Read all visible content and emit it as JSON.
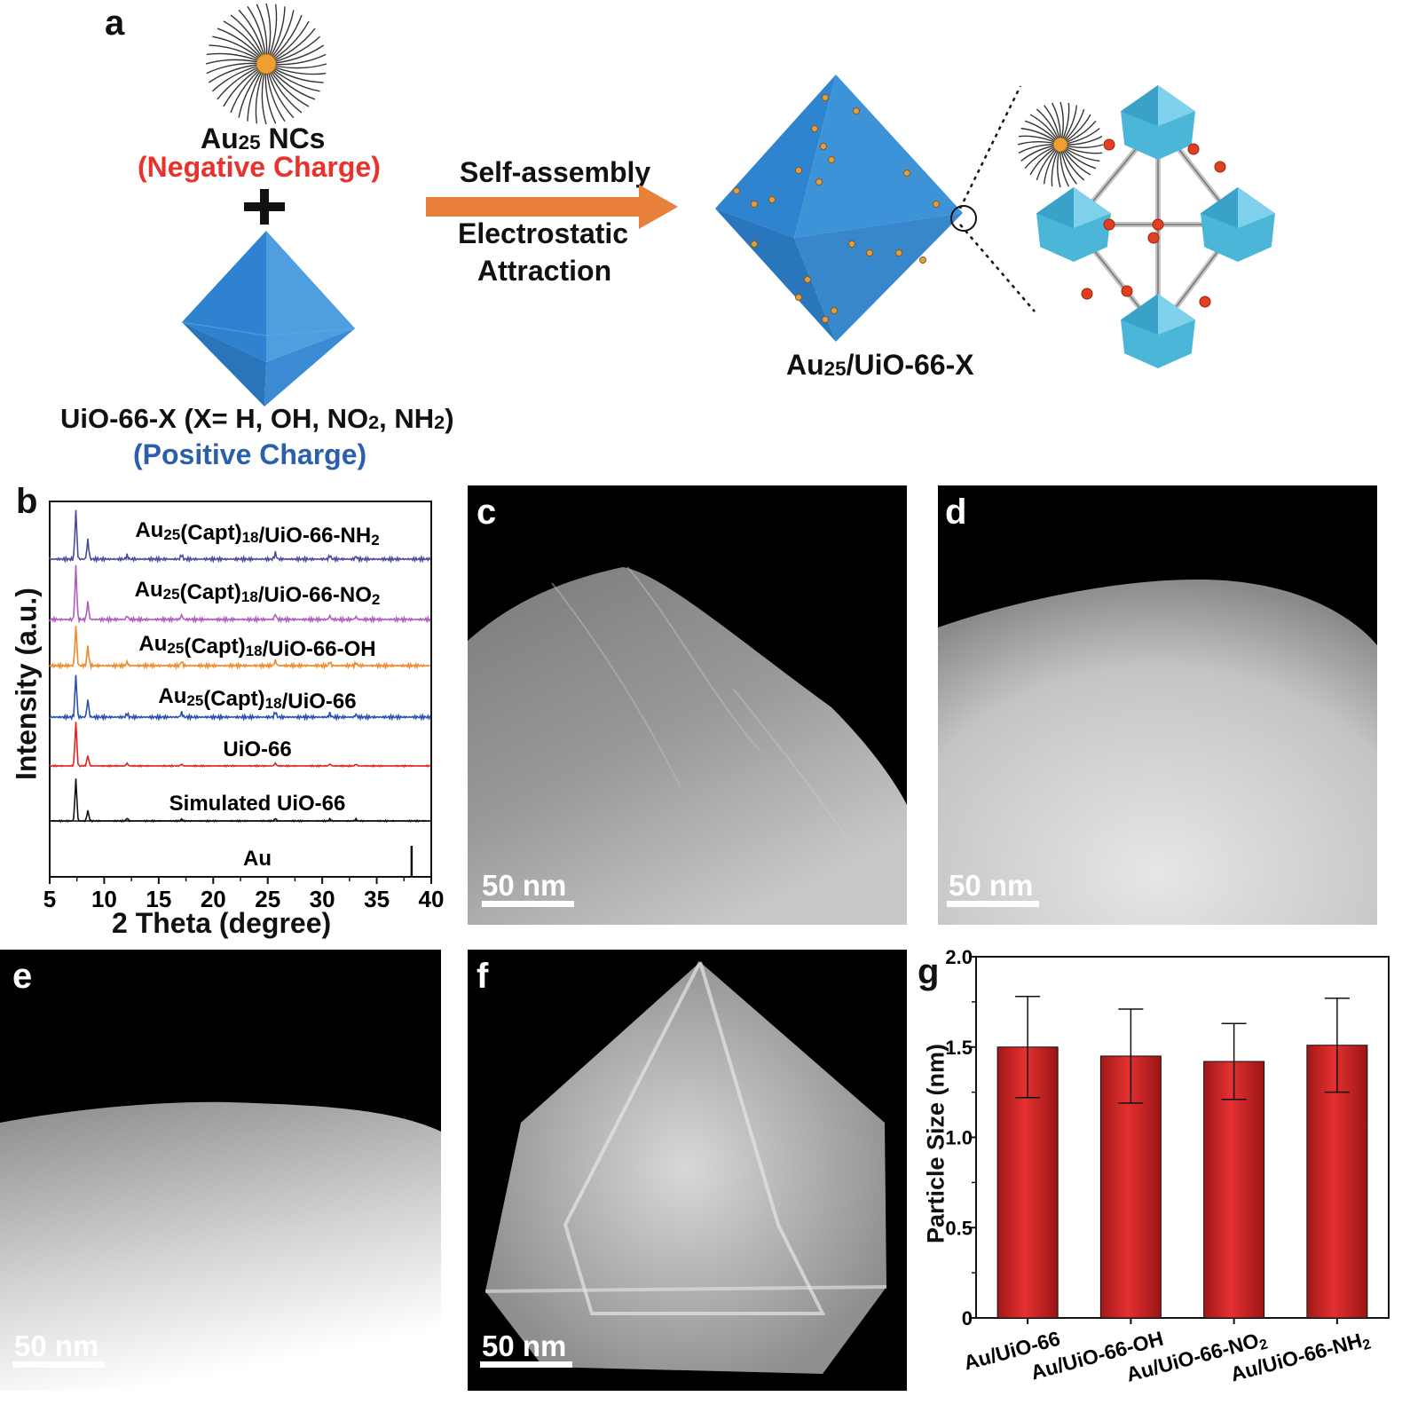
{
  "panel_a": {
    "label": "a",
    "au_nc_name": "Au",
    "au_nc_sub": "25",
    "au_nc_suffix": " NCs",
    "negative_charge": "(Negative Charge)",
    "plus": "+",
    "uio_label_pre": "UiO-66-X (X= H, OH, NO",
    "uio_sub1": "2",
    "uio_label_mid": ", NH",
    "uio_sub2": "2",
    "uio_label_post": ")",
    "positive_charge": "(Positive Charge)",
    "arrow_top": "Self-assembly",
    "arrow_bottom_1": "Electrostatic",
    "arrow_bottom_2": "Attraction",
    "product_pre": "Au",
    "product_sub": "25",
    "product_post": "/UiO-66-X",
    "colors": {
      "negative": "#e8322b",
      "positive": "#2a5fad",
      "arrow": "#e8803c",
      "octahedron": "#3b8fd6"
    }
  },
  "panel_b": {
    "label": "b",
    "chart_data": {
      "type": "line",
      "xlabel": "2 Theta (degree)",
      "ylabel": "Intensity (a.u.)",
      "xlim": [
        5,
        40
      ],
      "xticks": [
        "5",
        "10",
        "15",
        "20",
        "25",
        "30",
        "35",
        "40"
      ],
      "series": [
        {
          "name": "Au25(Capt)18/UiO-66-NH2",
          "label_parts": [
            "Au",
            "25",
            "(Capt)",
            "18",
            "/UiO-66-NH",
            "2"
          ],
          "color": "#4a4aa0"
        },
        {
          "name": "Au25(Capt)18/UiO-66-NO2",
          "label_parts": [
            "Au",
            "25",
            "(Capt)",
            "18",
            "/UiO-66-NO",
            "2"
          ],
          "color": "#b05cc0"
        },
        {
          "name": "Au25(Capt)18/UiO-66-OH",
          "label_parts": [
            "Au",
            "25",
            "(Capt)",
            "18",
            "/UiO-66-OH",
            ""
          ],
          "color": "#f08a2a"
        },
        {
          "name": "Au25(Capt)18/UiO-66",
          "label_parts": [
            "Au",
            "25",
            "(Capt)",
            "18",
            "/UiO-66",
            ""
          ],
          "color": "#2a4fb0"
        },
        {
          "name": "UiO-66",
          "label_parts": [
            "UiO-66",
            "",
            "",
            "",
            "",
            ""
          ],
          "color": "#e0231e"
        },
        {
          "name": "Simulated UiO-66",
          "label_parts": [
            "Simulated UiO-66",
            "",
            "",
            "",
            "",
            ""
          ],
          "color": "#111111"
        },
        {
          "name": "Au",
          "label_parts": [
            "Au",
            "",
            "",
            "",
            "",
            ""
          ],
          "color": "#111111"
        }
      ],
      "peaks_2theta": [
        7.4,
        8.5,
        12.1,
        17.1,
        25.7,
        30.7,
        33.1
      ],
      "au_peak_2theta": 38.2
    }
  },
  "panel_c": {
    "label": "c",
    "scale": "50 nm"
  },
  "panel_d": {
    "label": "d",
    "scale": "50 nm"
  },
  "panel_e": {
    "label": "e",
    "scale": "50 nm"
  },
  "panel_f": {
    "label": "f",
    "scale": "50 nm"
  },
  "panel_g": {
    "label": "g",
    "chart_data": {
      "type": "bar",
      "ylabel": "Particle Size (nm)",
      "ylim": [
        0,
        2.0
      ],
      "yticks": [
        "0",
        "0.5",
        "1.0",
        "1.5",
        "2.0"
      ],
      "categories": [
        "Au/UiO-66",
        "Au/UiO-66-OH",
        "Au/UiO-66-NO2",
        "Au/UiO-66-NH2"
      ],
      "category_parts": [
        [
          "Au/UiO-66",
          ""
        ],
        [
          "Au/UiO-66-OH",
          ""
        ],
        [
          "Au/UiO-66-NO",
          "2"
        ],
        [
          "Au/UiO-66-NH",
          "2"
        ]
      ],
      "values": [
        1.5,
        1.45,
        1.42,
        1.51
      ],
      "errors": [
        0.28,
        0.26,
        0.21,
        0.26
      ],
      "bar_color": "#e53030"
    }
  }
}
